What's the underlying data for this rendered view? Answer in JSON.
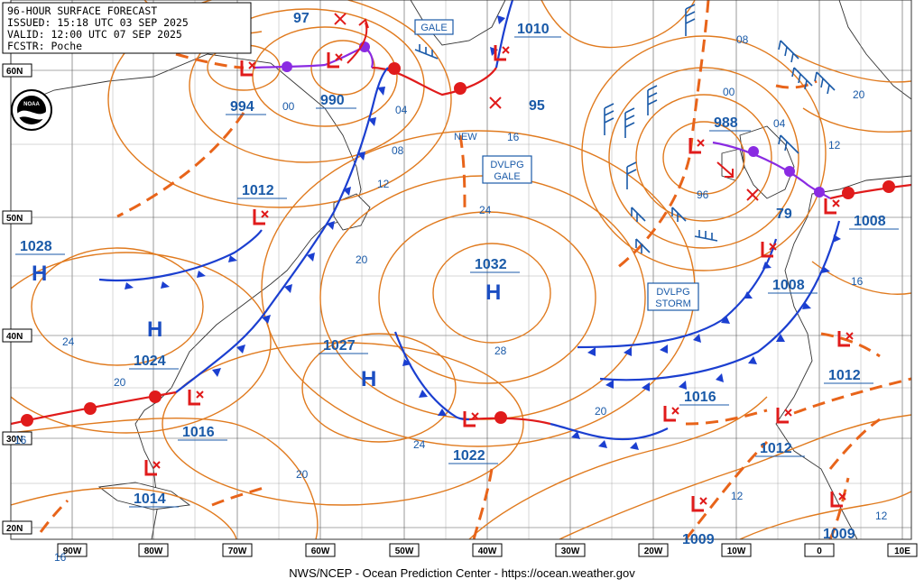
{
  "header": {
    "title": "96-HOUR SURFACE FORECAST",
    "issued": "ISSUED: 15:18 UTC 03 SEP 2025",
    "valid": "VALID:  12:00 UTC 07 SEP 2025",
    "forecaster": "FCSTR:  Poche"
  },
  "credit": "NWS/NCEP - Ocean Prediction Center - https://ocean.weather.gov",
  "logo": "noaa-logo",
  "colors": {
    "isobar": "#e07a1e",
    "warm_front": "#e01b1b",
    "cold_front": "#1b3fd0",
    "occluded_front": "#8a2be2",
    "low_symbol": "#e01b1b",
    "high_symbol": "#1b4ec2",
    "wind_barb": "#1a5aa8",
    "text_blue": "#1a5aa8"
  },
  "latitude_labels": [
    "60N",
    "50N",
    "40N",
    "30N",
    "20N"
  ],
  "longitude_labels": [
    "90W",
    "80W",
    "70W",
    "60W",
    "50W",
    "40W",
    "30W",
    "20W",
    "10W",
    "0",
    "10E"
  ],
  "pressure_labels": [
    "97",
    "1010",
    "994",
    "990",
    "95",
    "988",
    "1012",
    "1028",
    "1032",
    "79",
    "1008",
    "1008",
    "1024",
    "1027",
    "1012",
    "1016",
    "1016",
    "1022",
    "1012",
    "1014",
    "1009",
    "1009"
  ],
  "isobar_labels": [
    "00",
    "04",
    "08",
    "12",
    "16",
    "20",
    "24",
    "28",
    "20",
    "24",
    "20",
    "24",
    "16",
    "20",
    "12",
    "08",
    "00",
    "04",
    "96",
    "20",
    "12",
    "16",
    "16",
    "12",
    "16",
    "12"
  ],
  "warnings": [
    "GALE",
    "NEW",
    "DVLPG GALE",
    "DVLPG STORM"
  ],
  "high_symbol": "H",
  "highs": [
    {
      "name": "high-1028",
      "pressure": "1028"
    },
    {
      "name": "high-1024",
      "pressure": "1024"
    },
    {
      "name": "high-1032",
      "pressure": "1032"
    },
    {
      "name": "high-1027",
      "pressure": "1027"
    }
  ],
  "lows": [
    "994",
    "990",
    "988",
    "1010",
    "1012",
    "1016",
    "1022",
    "1008",
    "1012",
    "1016",
    "1014",
    "1009",
    "1012",
    "1009"
  ]
}
